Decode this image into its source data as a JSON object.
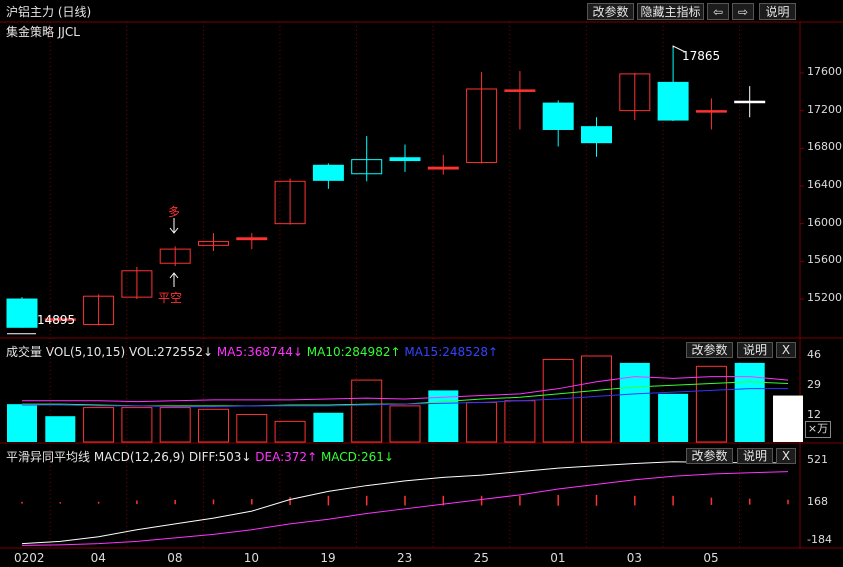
{
  "header": {
    "title": "沪铝主力 (日线)",
    "buttons": [
      "改参数",
      "隐藏主指标",
      "⇦",
      "⇨",
      "说明"
    ]
  },
  "main": {
    "indicator": "集金策略 JJCL",
    "annotations": {
      "buy": "多",
      "flat_short": "平空",
      "high": "17865",
      "low": "14895"
    },
    "price_ticks": [
      "17600",
      "17200",
      "16800",
      "16400",
      "16000",
      "15600",
      "15200"
    ]
  },
  "volume_panel": {
    "label": "成交量",
    "vol": "VOL(5,10,15)",
    "vol_value": "VOL:272552↓",
    "ma5": "MA5:368744↓",
    "ma10": "MA10:284982↑",
    "ma15": "MA15:248528↑",
    "buttons": [
      "改参数",
      "说明",
      "X"
    ],
    "ticks": [
      "46",
      "29",
      "12"
    ],
    "unit": "×万"
  },
  "macd_panel": {
    "label": "平滑异同平均线",
    "macd": "MACD(12,26,9)",
    "diff": "DIFF:503↓",
    "dea": "DEA:372↑",
    "macd_value": "MACD:261↓",
    "buttons": [
      "改参数",
      "说明",
      "X"
    ],
    "ticks": [
      "521",
      "168",
      "-184"
    ]
  },
  "x_axis": [
    "0202",
    "04",
    "08",
    "10",
    "19",
    "23",
    "25",
    "01",
    "03",
    "05"
  ],
  "colors": {
    "up": "#ff3232",
    "down": "#00ffff",
    "ma5": "#ff33ff",
    "ma10": "#33ff33",
    "ma15": "#3333ff",
    "diff": "#ffffff",
    "dea": "#ff33ff"
  },
  "chart_data": {
    "type": "candlestick",
    "ylim": [
      14850,
      17950
    ],
    "candles": [
      {
        "o": 15200,
        "c": 14900,
        "h": 15220,
        "l": 14895
      },
      {
        "o": 14980,
        "c": 14990,
        "h": 15010,
        "l": 14960
      },
      {
        "o": 14930,
        "c": 15230,
        "h": 15250,
        "l": 14920
      },
      {
        "o": 15220,
        "c": 15500,
        "h": 15540,
        "l": 15200
      },
      {
        "o": 15580,
        "c": 15730,
        "h": 15760,
        "l": 15550
      },
      {
        "o": 15770,
        "c": 15810,
        "h": 15900,
        "l": 15710
      },
      {
        "o": 15830,
        "c": 15850,
        "h": 15900,
        "l": 15730
      },
      {
        "o": 16000,
        "c": 16450,
        "h": 16480,
        "l": 15990
      },
      {
        "o": 16620,
        "c": 16460,
        "h": 16640,
        "l": 16370
      },
      {
        "o": 16530,
        "c": 16680,
        "h": 16930,
        "l": 16450
      },
      {
        "o": 16700,
        "c": 16670,
        "h": 16840,
        "l": 16550
      },
      {
        "o": 16580,
        "c": 16600,
        "h": 16730,
        "l": 16520
      },
      {
        "o": 16650,
        "c": 17430,
        "h": 17610,
        "l": 16640
      },
      {
        "o": 17410,
        "c": 17420,
        "h": 17620,
        "l": 17000
      },
      {
        "o": 17280,
        "c": 17000,
        "h": 17310,
        "l": 16820
      },
      {
        "o": 17030,
        "c": 16860,
        "h": 17130,
        "l": 16710
      },
      {
        "o": 17200,
        "c": 17590,
        "h": 17600,
        "l": 17100
      },
      {
        "o": 17500,
        "c": 17100,
        "h": 17865,
        "l": 17090
      },
      {
        "o": 17200,
        "c": 17200,
        "h": 17330,
        "l": 17000
      },
      {
        "o": 17300,
        "c": 17300,
        "h": 17460,
        "l": 17130
      }
    ],
    "volume": {
      "ylim": [
        0,
        50
      ],
      "values": [
        22,
        15,
        20,
        20,
        20,
        19,
        16,
        12,
        17,
        36,
        21,
        30,
        23,
        24,
        48,
        50,
        46,
        28,
        44,
        46,
        27
      ],
      "up": [
        0,
        0,
        1,
        1,
        1,
        1,
        1,
        1,
        0,
        1,
        1,
        0,
        1,
        1,
        1,
        1,
        0,
        0,
        1,
        0,
        1
      ],
      "highlight_last": true,
      "ma5": [
        24,
        24,
        24,
        23.5,
        24,
        24.5,
        24.5,
        24.5,
        25,
        25.5,
        25,
        26,
        27,
        28,
        31,
        35,
        38,
        37,
        38,
        38,
        36
      ],
      "ma10": [
        22,
        22,
        21.5,
        21,
        21,
        21,
        21,
        21.5,
        21.5,
        22,
        22,
        23.5,
        25,
        26,
        28,
        30,
        32,
        33,
        34,
        35,
        34
      ],
      "ma15": [
        21.5,
        21.5,
        21,
        21,
        20.5,
        20.5,
        21,
        21,
        21,
        21.5,
        22,
        22.5,
        23,
        24,
        25,
        26.5,
        28,
        29,
        30,
        31,
        31
      ]
    },
    "macd": {
      "ylim": [
        -200,
        540
      ],
      "diff": [
        -180,
        -160,
        -120,
        -60,
        -10,
        40,
        100,
        200,
        270,
        320,
        360,
        390,
        410,
        440,
        470,
        490,
        510,
        525,
        520,
        515,
        515
      ],
      "dea": [
        -195,
        -190,
        -180,
        -160,
        -130,
        -100,
        -60,
        -10,
        30,
        80,
        120,
        160,
        200,
        240,
        290,
        330,
        370,
        400,
        420,
        430,
        440
      ],
      "bars": [
        0,
        0,
        0,
        0,
        0,
        0,
        0,
        0,
        0,
        0,
        0,
        0,
        0,
        0,
        0,
        0,
        0,
        0,
        0,
        0,
        0
      ],
      "hist": [
        30,
        25,
        30,
        60,
        70,
        80,
        90,
        130,
        160,
        160,
        160,
        160,
        160,
        160,
        180,
        180,
        160,
        160,
        120,
        100,
        75
      ]
    }
  }
}
